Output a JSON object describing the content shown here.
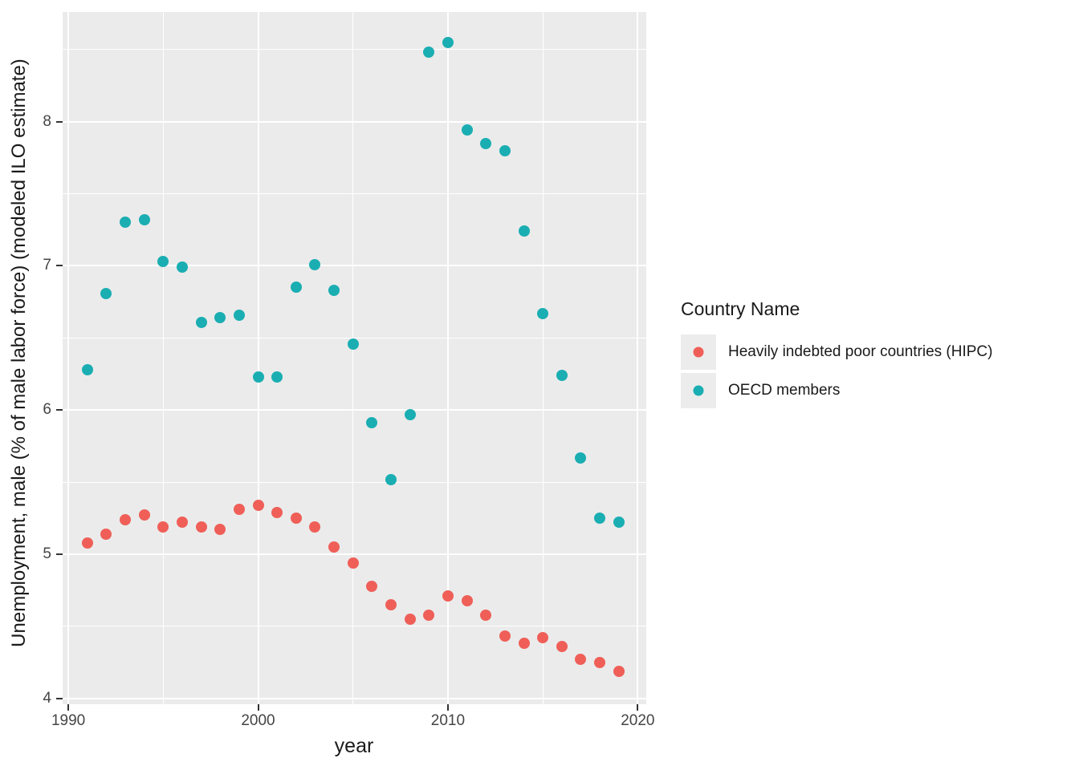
{
  "figure": {
    "background": "#FFFFFF",
    "panel_background": "#EBEBEB",
    "gridline_color": "#FFFFFF",
    "tick_color": "#333333",
    "tick_label_color": "#454545"
  },
  "axes": {
    "x": {
      "title": "year",
      "tick_labels": [
        "1990",
        "2000",
        "2010",
        "2020"
      ],
      "major_ticks": [
        1990,
        2000,
        2010,
        2020
      ],
      "minor_ticks": [
        1995,
        2005,
        2015
      ],
      "domain": [
        1989.7,
        2020.45
      ]
    },
    "y": {
      "title": "Unemployment, male (% of male labor force) (modeled ILO estimate)",
      "tick_labels": [
        "4",
        "5",
        "6",
        "7",
        "8"
      ],
      "major_ticks": [
        4,
        5,
        6,
        7,
        8
      ],
      "minor_ticks": [
        4.5,
        5.5,
        6.5,
        7.5,
        8.5
      ],
      "domain": [
        3.96,
        8.76
      ]
    }
  },
  "legend": {
    "title": "Country Name",
    "items": [
      {
        "label": "Heavily indebted poor countries (HIPC)",
        "color": "#EF5F58"
      },
      {
        "label": "OECD members",
        "color": "#1AAEB2"
      }
    ]
  },
  "chart_data": {
    "type": "scatter",
    "title": "",
    "xlabel": "year",
    "ylabel": "Unemployment, male (% of male labor force) (modeled ILO estimate)",
    "xlim": [
      1989.7,
      2020.45
    ],
    "ylim": [
      3.96,
      8.76
    ],
    "grid": true,
    "legend_position": "right",
    "legend_title": "Country Name",
    "x": [
      1991,
      1992,
      1993,
      1994,
      1995,
      1996,
      1997,
      1998,
      1999,
      2000,
      2001,
      2002,
      2003,
      2004,
      2005,
      2006,
      2007,
      2008,
      2009,
      2010,
      2011,
      2012,
      2013,
      2014,
      2015,
      2016,
      2017,
      2018,
      2019
    ],
    "series": [
      {
        "name": "Heavily indebted poor countries (HIPC)",
        "color": "#EF5F58",
        "values": [
          5.08,
          5.14,
          5.24,
          5.27,
          5.19,
          5.22,
          5.19,
          5.17,
          5.31,
          5.34,
          5.29,
          5.25,
          5.19,
          5.05,
          4.94,
          4.78,
          4.65,
          4.55,
          4.58,
          4.71,
          4.68,
          4.58,
          4.43,
          4.38,
          4.42,
          4.36,
          4.27,
          4.25,
          4.19
        ]
      },
      {
        "name": "OECD members",
        "color": "#1AAEB2",
        "values": [
          6.28,
          6.81,
          7.3,
          7.32,
          7.03,
          6.99,
          6.61,
          6.64,
          6.66,
          6.23,
          6.23,
          6.85,
          7.01,
          6.83,
          6.46,
          5.91,
          5.52,
          5.97,
          8.48,
          8.55,
          7.94,
          7.85,
          7.8,
          7.24,
          6.67,
          6.24,
          5.67,
          5.25,
          5.22
        ]
      }
    ]
  }
}
